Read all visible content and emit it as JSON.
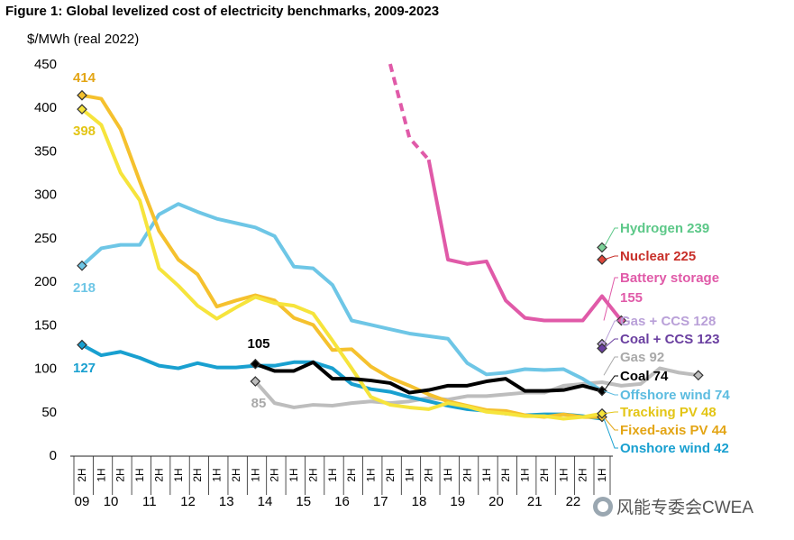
{
  "title": "Figure 1: Global levelized cost of electricity benchmarks, 2009-2023",
  "watermark": "风能专委会CWEA",
  "chart_data": {
    "type": "line",
    "ylabel": "$/MWh (real 2022)",
    "ylim": [
      0,
      450
    ],
    "yticks": [
      0,
      50,
      100,
      150,
      200,
      250,
      300,
      350,
      400,
      450
    ],
    "periods": [
      "2H",
      "1H",
      "2H",
      "1H",
      "2H",
      "1H",
      "2H",
      "1H",
      "2H",
      "1H",
      "2H",
      "1H",
      "2H",
      "1H",
      "2H",
      "1H",
      "2H",
      "1H",
      "2H",
      "1H",
      "2H",
      "1H",
      "2H",
      "1H",
      "2H",
      "1H",
      "2H",
      "1H"
    ],
    "years": [
      {
        "label": "09",
        "start": 0,
        "end": 0
      },
      {
        "label": "10",
        "start": 1,
        "end": 2
      },
      {
        "label": "11",
        "start": 3,
        "end": 4
      },
      {
        "label": "12",
        "start": 5,
        "end": 6
      },
      {
        "label": "13",
        "start": 7,
        "end": 8
      },
      {
        "label": "14",
        "start": 9,
        "end": 10
      },
      {
        "label": "15",
        "start": 11,
        "end": 12
      },
      {
        "label": "16",
        "start": 13,
        "end": 14
      },
      {
        "label": "17",
        "start": 15,
        "end": 16
      },
      {
        "label": "18",
        "start": 17,
        "end": 18
      },
      {
        "label": "19",
        "start": 19,
        "end": 20
      },
      {
        "label": "20",
        "start": 21,
        "end": 22
      },
      {
        "label": "21",
        "start": 23,
        "end": 24
      },
      {
        "label": "22",
        "start": 25,
        "end": 26
      }
    ],
    "series": [
      {
        "name": "Gas",
        "color": "#bdbdbd",
        "start": 9,
        "values": [
          85,
          60,
          55,
          58,
          57,
          60,
          62,
          60,
          62,
          66,
          64,
          68,
          68,
          70,
          72,
          72,
          80,
          82,
          84,
          80,
          82,
          100,
          95,
          92
        ],
        "marker": "diamond-gray",
        "markers_at": [
          0,
          23
        ]
      },
      {
        "name": "Offshore wind",
        "color": "#6ec6e6",
        "start": 0,
        "values": [
          218,
          238,
          242,
          242,
          277,
          289,
          280,
          272,
          267,
          262,
          252,
          217,
          215,
          196,
          155,
          150,
          145,
          140,
          137,
          134,
          106,
          93,
          95,
          99,
          98,
          99,
          88,
          74
        ],
        "marker": "diamond-blue",
        "markers_at": [
          0
        ]
      },
      {
        "name": "Onshore wind",
        "color": "#19a0d0",
        "start": 0,
        "values": [
          127,
          115,
          119,
          112,
          103,
          100,
          106,
          101,
          101,
          103,
          103,
          107,
          107,
          100,
          82,
          76,
          73,
          67,
          62,
          57,
          53,
          51,
          48,
          46,
          47,
          47,
          45,
          42
        ],
        "marker": "diamond-blue",
        "markers_at": [
          0
        ]
      },
      {
        "name": "Fixed-axis PV",
        "color": "#f5c12e",
        "start": 0,
        "values": [
          414,
          410,
          375,
          315,
          258,
          225,
          208,
          171,
          178,
          184,
          178,
          158,
          150,
          121,
          122,
          102,
          89,
          80,
          70,
          62,
          57,
          52,
          51,
          46,
          44,
          47,
          44,
          44
        ],
        "marker": "diamond-yellow",
        "markers_at": [
          0,
          27
        ]
      },
      {
        "name": "Tracking PV",
        "color": "#f6e43c",
        "start": 0,
        "values": [
          398,
          380,
          325,
          293,
          215,
          195,
          172,
          157,
          170,
          182,
          175,
          172,
          163,
          132,
          100,
          67,
          58,
          55,
          53,
          60,
          56,
          50,
          48,
          45,
          45,
          42,
          44,
          48
        ],
        "marker": "diamond-yellow",
        "markers_at": [
          0,
          27
        ]
      },
      {
        "name": "Coal",
        "color": "#000000",
        "start": 9,
        "values": [
          105,
          97,
          97,
          107,
          88,
          88,
          86,
          83,
          72,
          75,
          80,
          80,
          85,
          88,
          74,
          74,
          75,
          80,
          74
        ],
        "marker": "diamond-black",
        "markers_at": [
          0,
          18
        ]
      },
      {
        "name": "Battery storage",
        "color": "#e05aa8",
        "start": 16,
        "values": [
          450,
          365,
          340,
          225,
          220,
          223,
          178,
          158,
          155,
          155,
          155,
          183,
          155
        ],
        "dashed_until": 2,
        "marker": "diamond-pink",
        "markers_at": [
          12
        ]
      }
    ],
    "end_points": [
      {
        "name": "Hydrogen",
        "value": 239,
        "color": "#7ed29a"
      },
      {
        "name": "Nuclear",
        "value": 225,
        "color": "#e0483c"
      },
      {
        "name": "Gas + CCS",
        "value": 128,
        "color": "#b9a0d8"
      },
      {
        "name": "Coal + CCS",
        "value": 123,
        "color": "#6a3fa0"
      }
    ],
    "annotations": [
      {
        "text": "414",
        "series": "Fixed-axis PV",
        "color": "#e3a515"
      },
      {
        "text": "398",
        "series": "Tracking PV",
        "color": "#e3c515"
      },
      {
        "text": "218",
        "series": "Offshore wind",
        "color": "#6ec6e6"
      },
      {
        "text": "127",
        "series": "Onshore wind",
        "color": "#19a0d0"
      },
      {
        "text": "105",
        "series": "Coal",
        "color": "#000000"
      },
      {
        "text": "85",
        "series": "Gas",
        "color": "#a9a9a9"
      }
    ],
    "end_labels": [
      {
        "text": "Hydrogen  239",
        "color": "#5cc888"
      },
      {
        "text": "Nuclear  225",
        "color": "#c8302a"
      },
      {
        "text": "Battery storage",
        "color": "#e05aa8"
      },
      {
        "text": "155",
        "color": "#e05aa8"
      },
      {
        "text": "Gas + CCS  128",
        "color": "#b9a0d8"
      },
      {
        "text": "Coal + CCS  123",
        "color": "#6a3fa0"
      },
      {
        "text": "Gas  92",
        "color": "#a9a9a9"
      },
      {
        "text": "Coal  74",
        "color": "#000000"
      },
      {
        "text": "Offshore wind  74",
        "color": "#5cbce0"
      },
      {
        "text": "Tracking PV  48",
        "color": "#e3c515"
      },
      {
        "text": "Fixed-axis PV  44",
        "color": "#e3a515"
      },
      {
        "text": "Onshore wind  42",
        "color": "#19a0d0"
      }
    ]
  }
}
